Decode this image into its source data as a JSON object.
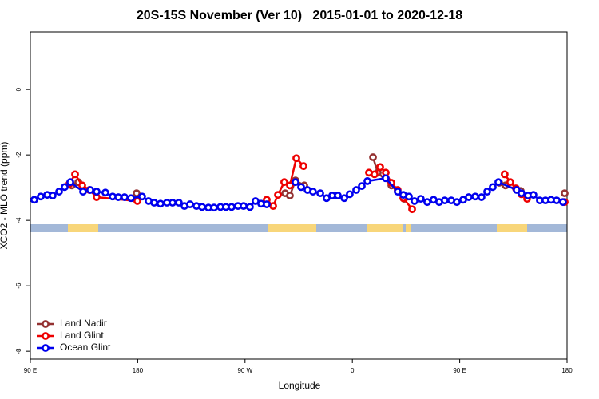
{
  "chart_data": {
    "type": "line",
    "title": "20S-15S November (Ver 10)   2015-01-01 to 2020-12-18",
    "x_label": "Longitude",
    "y_label": "XCO2 - MLO trend (ppm)",
    "xlim": [
      90,
      540
    ],
    "xticks": [
      {
        "value": 90,
        "label": "90 E"
      },
      {
        "value": 180,
        "label": "180"
      },
      {
        "value": 270,
        "label": "90 W"
      },
      {
        "value": 360,
        "label": "0"
      },
      {
        "value": 450,
        "label": "90 E"
      },
      {
        "value": 540,
        "label": "180"
      }
    ],
    "ylim": [
      -8.24,
      1.76
    ],
    "yticks": [
      0,
      -2,
      -4,
      -6,
      -8
    ],
    "legend": "bottom left",
    "series": [
      {
        "name": "Land Nadir",
        "color": "#943232",
        "x": [
          124.8,
          130.2,
          null,
          179.1,
          null,
          303.6,
          307.6,
          312.3,
          319.7,
          null,
          377.3,
          381.3,
          392.7,
          403.4,
          null,
          483.1,
          488.4,
          501.1,
          null,
          538.0
        ],
        "values": [
          -2.93,
          -2.83,
          null,
          -3.17,
          null,
          -3.17,
          -3.24,
          -2.78,
          -2.93,
          null,
          -2.07,
          -2.54,
          -2.93,
          -3.34,
          null,
          -2.85,
          -2.93,
          -3.1,
          null,
          -3.17
        ]
      },
      {
        "name": "Land Glint",
        "color": "#ee0000",
        "x": [
          122.8,
          127.5,
          133.5,
          139.6,
          145.6,
          179.7,
          null,
          288.2,
          293.6,
          297.6,
          302.9,
          307.6,
          313.0,
          319.0,
          null,
          373.9,
          378.6,
          383.3,
          388.0,
          392.7,
          398.0,
          402.7,
          410.1,
          null,
          487.7,
          492.4,
          497.1,
          501.8,
          506.5,
          null,
          538.0
        ],
        "values": [
          -2.88,
          -2.59,
          -2.93,
          -3.07,
          -3.29,
          -3.41,
          null,
          -3.37,
          -3.56,
          -3.22,
          -2.83,
          -2.93,
          -2.1,
          -2.34,
          null,
          -2.54,
          -2.59,
          -2.37,
          -2.54,
          -2.85,
          -3.07,
          -3.32,
          -3.66,
          null,
          -2.59,
          -2.83,
          -3.02,
          -3.2,
          -3.34,
          null,
          -3.44
        ]
      },
      {
        "name": "Ocean Glint",
        "color": "#0000ee",
        "x": [
          93.3,
          98.7,
          104.1,
          108.7,
          114.1,
          118.8,
          123.5,
          134.2,
          140.2,
          145.6,
          152.9,
          159.0,
          163.7,
          169.0,
          174.4,
          183.7,
          189.1,
          193.8,
          199.1,
          204.5,
          209.2,
          214.5,
          219.2,
          223.9,
          229.3,
          234.0,
          239.3,
          244.0,
          249.4,
          254.0,
          258.7,
          264.1,
          268.8,
          274.1,
          278.8,
          283.5,
          288.2,
          null,
          312.3,
          317.0,
          322.4,
          327.0,
          333.1,
          338.4,
          343.1,
          347.8,
          353.2,
          357.8,
          363.2,
          367.9,
          372.6,
          387.9,
          398.0,
          402.7,
          407.4,
          412.1,
          417.4,
          422.8,
          428.1,
          432.8,
          437.5,
          442.9,
          447.6,
          452.9,
          457.6,
          463.0,
          468.3,
          473.0,
          477.7,
          482.4,
          497.8,
          501.8,
          507.2,
          511.8,
          517.2,
          521.9,
          526.6,
          531.3,
          536.6
        ],
        "values": [
          -3.37,
          -3.27,
          -3.22,
          -3.24,
          -3.12,
          -2.98,
          -2.83,
          -3.12,
          -3.07,
          -3.12,
          -3.15,
          -3.27,
          -3.29,
          -3.29,
          -3.32,
          -3.27,
          -3.41,
          -3.46,
          -3.49,
          -3.46,
          -3.46,
          -3.46,
          -3.56,
          -3.51,
          -3.56,
          -3.59,
          -3.61,
          -3.61,
          -3.59,
          -3.59,
          -3.59,
          -3.56,
          -3.56,
          -3.59,
          -3.41,
          -3.49,
          -3.51,
          null,
          -2.83,
          -2.98,
          -3.07,
          -3.12,
          -3.17,
          -3.32,
          -3.24,
          -3.24,
          -3.32,
          -3.2,
          -3.07,
          -2.95,
          -2.8,
          -2.71,
          -3.12,
          -3.22,
          -3.27,
          -3.41,
          -3.34,
          -3.44,
          -3.37,
          -3.44,
          -3.39,
          -3.39,
          -3.44,
          -3.37,
          -3.29,
          -3.27,
          -3.29,
          -3.12,
          -2.98,
          -2.83,
          -3.07,
          -3.17,
          -3.24,
          -3.22,
          -3.39,
          -3.39,
          -3.37,
          -3.39,
          -3.44
        ]
      }
    ]
  }
}
